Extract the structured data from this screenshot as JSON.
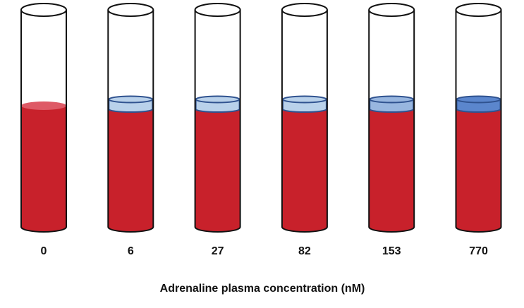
{
  "tubes": [
    {
      "label": "0"
    },
    {
      "label": "6"
    },
    {
      "label": "27"
    },
    {
      "label": "82"
    },
    {
      "label": "153"
    },
    {
      "label": "770"
    }
  ],
  "axis_label": "Adrenaline plasma concentration (nM)"
}
